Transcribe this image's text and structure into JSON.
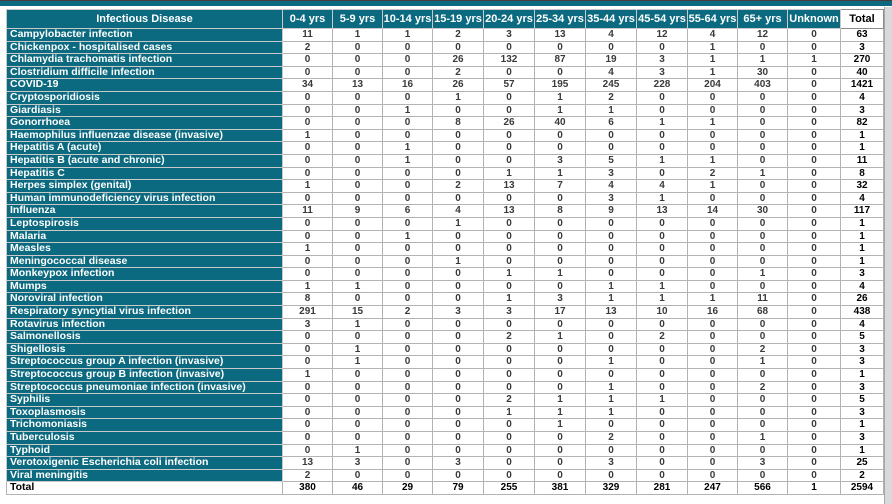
{
  "table": {
    "title_column": "Infectious Disease",
    "headers": [
      "Infectious Disease",
      "0-4 yrs",
      "5-9 yrs",
      "10-14 yrs",
      "15-19 yrs",
      "20-24 yrs",
      "25-34 yrs",
      "35-44 yrs",
      "45-54 yrs",
      "55-64 yrs",
      "65+ yrs",
      "Unknown",
      "Total"
    ],
    "accent_color": "#0b6a80",
    "rows": [
      {
        "name": "Campylobacter infection",
        "values": [
          11,
          1,
          1,
          2,
          3,
          13,
          4,
          12,
          4,
          12,
          0
        ],
        "total": 63
      },
      {
        "name": "Chickenpox - hospitalised cases",
        "values": [
          2,
          0,
          0,
          0,
          0,
          0,
          0,
          0,
          1,
          0,
          0
        ],
        "total": 3
      },
      {
        "name": "Chlamydia trachomatis infection",
        "values": [
          0,
          0,
          0,
          26,
          132,
          87,
          19,
          3,
          1,
          1,
          1
        ],
        "total": 270
      },
      {
        "name": "Clostridium difficile infection",
        "values": [
          0,
          0,
          0,
          2,
          0,
          0,
          4,
          3,
          1,
          30,
          0
        ],
        "total": 40
      },
      {
        "name": "COVID-19",
        "values": [
          34,
          13,
          16,
          26,
          57,
          195,
          245,
          228,
          204,
          403,
          0
        ],
        "total": 1421
      },
      {
        "name": "Cryptosporidiosis",
        "values": [
          0,
          0,
          0,
          1,
          0,
          1,
          2,
          0,
          0,
          0,
          0
        ],
        "total": 4
      },
      {
        "name": "Giardiasis",
        "values": [
          0,
          0,
          1,
          0,
          0,
          1,
          1,
          0,
          0,
          0,
          0
        ],
        "total": 3
      },
      {
        "name": "Gonorrhoea",
        "values": [
          0,
          0,
          0,
          8,
          26,
          40,
          6,
          1,
          1,
          0,
          0
        ],
        "total": 82
      },
      {
        "name": "Haemophilus influenzae disease (invasive)",
        "values": [
          1,
          0,
          0,
          0,
          0,
          0,
          0,
          0,
          0,
          0,
          0
        ],
        "total": 1
      },
      {
        "name": "Hepatitis A (acute)",
        "values": [
          0,
          0,
          1,
          0,
          0,
          0,
          0,
          0,
          0,
          0,
          0
        ],
        "total": 1
      },
      {
        "name": "Hepatitis B (acute and chronic)",
        "values": [
          0,
          0,
          1,
          0,
          0,
          3,
          5,
          1,
          1,
          0,
          0
        ],
        "total": 11
      },
      {
        "name": "Hepatitis C",
        "values": [
          0,
          0,
          0,
          0,
          1,
          1,
          3,
          0,
          2,
          1,
          0
        ],
        "total": 8
      },
      {
        "name": "Herpes simplex (genital)",
        "values": [
          1,
          0,
          0,
          2,
          13,
          7,
          4,
          4,
          1,
          0,
          0
        ],
        "total": 32
      },
      {
        "name": "Human immunodeficiency virus infection",
        "values": [
          0,
          0,
          0,
          0,
          0,
          0,
          3,
          1,
          0,
          0,
          0
        ],
        "total": 4
      },
      {
        "name": "Influenza",
        "values": [
          11,
          9,
          6,
          4,
          13,
          8,
          9,
          13,
          14,
          30,
          0
        ],
        "total": 117
      },
      {
        "name": "Leptospirosis",
        "values": [
          0,
          0,
          0,
          1,
          0,
          0,
          0,
          0,
          0,
          0,
          0
        ],
        "total": 1
      },
      {
        "name": "Malaria",
        "values": [
          0,
          0,
          1,
          0,
          0,
          0,
          0,
          0,
          0,
          0,
          0
        ],
        "total": 1
      },
      {
        "name": "Measles",
        "values": [
          1,
          0,
          0,
          0,
          0,
          0,
          0,
          0,
          0,
          0,
          0
        ],
        "total": 1
      },
      {
        "name": "Meningococcal disease",
        "values": [
          0,
          0,
          0,
          1,
          0,
          0,
          0,
          0,
          0,
          0,
          0
        ],
        "total": 1
      },
      {
        "name": "Monkeypox infection",
        "values": [
          0,
          0,
          0,
          0,
          1,
          1,
          0,
          0,
          0,
          1,
          0
        ],
        "total": 3
      },
      {
        "name": "Mumps",
        "values": [
          1,
          1,
          0,
          0,
          0,
          0,
          1,
          1,
          0,
          0,
          0
        ],
        "total": 4
      },
      {
        "name": "Noroviral infection",
        "values": [
          8,
          0,
          0,
          0,
          1,
          3,
          1,
          1,
          1,
          11,
          0
        ],
        "total": 26
      },
      {
        "name": "Respiratory syncytial virus infection",
        "values": [
          291,
          15,
          2,
          3,
          3,
          17,
          13,
          10,
          16,
          68,
          0
        ],
        "total": 438
      },
      {
        "name": "Rotavirus infection",
        "values": [
          3,
          1,
          0,
          0,
          0,
          0,
          0,
          0,
          0,
          0,
          0
        ],
        "total": 4
      },
      {
        "name": "Salmonellosis",
        "values": [
          0,
          0,
          0,
          0,
          2,
          1,
          0,
          2,
          0,
          0,
          0
        ],
        "total": 5
      },
      {
        "name": "Shigellosis",
        "values": [
          0,
          1,
          0,
          0,
          0,
          0,
          0,
          0,
          0,
          2,
          0
        ],
        "total": 3
      },
      {
        "name": "Streptococcus group A infection (invasive)",
        "values": [
          0,
          1,
          0,
          0,
          0,
          0,
          1,
          0,
          0,
          1,
          0
        ],
        "total": 3
      },
      {
        "name": "Streptococcus group B infection (invasive)",
        "values": [
          1,
          0,
          0,
          0,
          0,
          0,
          0,
          0,
          0,
          0,
          0
        ],
        "total": 1
      },
      {
        "name": "Streptococcus pneumoniae infection (invasive)",
        "values": [
          0,
          0,
          0,
          0,
          0,
          0,
          1,
          0,
          0,
          2,
          0
        ],
        "total": 3
      },
      {
        "name": "Syphilis",
        "values": [
          0,
          0,
          0,
          0,
          2,
          1,
          1,
          1,
          0,
          0,
          0
        ],
        "total": 5
      },
      {
        "name": "Toxoplasmosis",
        "values": [
          0,
          0,
          0,
          0,
          1,
          1,
          1,
          0,
          0,
          0,
          0
        ],
        "total": 3
      },
      {
        "name": "Trichomoniasis",
        "values": [
          0,
          0,
          0,
          0,
          0,
          1,
          0,
          0,
          0,
          0,
          0
        ],
        "total": 1
      },
      {
        "name": "Tuberculosis",
        "values": [
          0,
          0,
          0,
          0,
          0,
          0,
          2,
          0,
          0,
          1,
          0
        ],
        "total": 3
      },
      {
        "name": "Typhoid",
        "values": [
          0,
          1,
          0,
          0,
          0,
          0,
          0,
          0,
          0,
          0,
          0
        ],
        "total": 1
      },
      {
        "name": "Verotoxigenic Escherichia coli infection",
        "values": [
          13,
          3,
          0,
          3,
          0,
          0,
          3,
          0,
          0,
          3,
          0
        ],
        "total": 25
      },
      {
        "name": "Viral meningitis",
        "values": [
          2,
          0,
          0,
          0,
          0,
          0,
          0,
          0,
          0,
          0,
          0
        ],
        "total": 2
      }
    ],
    "total_row": {
      "label": "Total",
      "values": [
        380,
        46,
        29,
        79,
        255,
        381,
        329,
        281,
        247,
        566,
        1
      ],
      "total": 2594
    }
  }
}
